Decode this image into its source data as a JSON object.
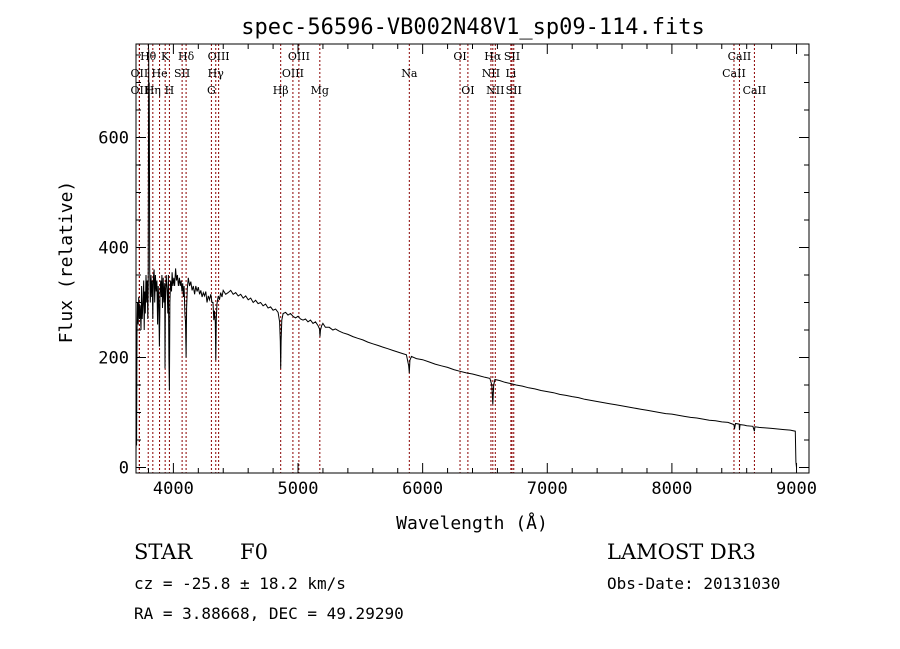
{
  "chart_data": {
    "type": "line",
    "title": "spec-56596-VB002N48V1_sp09-114.fits",
    "xlabel": "Wavelength (Å)",
    "ylabel": "Flux (relative)",
    "xlim": [
      3700,
      9100
    ],
    "ylim": [
      -10,
      770
    ],
    "xticks": [
      4000,
      5000,
      6000,
      7000,
      8000,
      9000
    ],
    "yticks": [
      0,
      200,
      400,
      600
    ],
    "series": [
      {
        "name": "flux",
        "points": [
          [
            3700,
            0
          ],
          [
            3702,
            130
          ],
          [
            3705,
            40
          ],
          [
            3708,
            250
          ],
          [
            3712,
            300
          ],
          [
            3718,
            260
          ],
          [
            3722,
            310
          ],
          [
            3728,
            270
          ],
          [
            3733,
            295
          ],
          [
            3740,
            250
          ],
          [
            3745,
            330
          ],
          [
            3750,
            270
          ],
          [
            3756,
            300
          ],
          [
            3762,
            340
          ],
          [
            3766,
            250
          ],
          [
            3770,
            320
          ],
          [
            3775,
            280
          ],
          [
            3780,
            350
          ],
          [
            3786,
            300
          ],
          [
            3790,
            340
          ],
          [
            3795,
            270
          ],
          [
            3798,
            330
          ],
          [
            3800,
            600
          ],
          [
            3802,
            760
          ],
          [
            3804,
            540
          ],
          [
            3806,
            700
          ],
          [
            3808,
            520
          ],
          [
            3810,
            360
          ],
          [
            3815,
            300
          ],
          [
            3820,
            350
          ],
          [
            3826,
            310
          ],
          [
            3830,
            340
          ],
          [
            3835,
            270
          ],
          [
            3840,
            345
          ],
          [
            3845,
            360
          ],
          [
            3850,
            300
          ],
          [
            3856,
            350
          ],
          [
            3862,
            320
          ],
          [
            3868,
            340
          ],
          [
            3873,
            260
          ],
          [
            3878,
            330
          ],
          [
            3883,
            305
          ],
          [
            3888,
            220
          ],
          [
            3893,
            320
          ],
          [
            3898,
            340
          ],
          [
            3903,
            310
          ],
          [
            3908,
            350
          ],
          [
            3913,
            290
          ],
          [
            3918,
            345
          ],
          [
            3924,
            300
          ],
          [
            3930,
            335
          ],
          [
            3933,
            180
          ],
          [
            3936,
            300
          ],
          [
            3942,
            350
          ],
          [
            3950,
            320
          ],
          [
            3955,
            280
          ],
          [
            3960,
            350
          ],
          [
            3964,
            200
          ],
          [
            3968,
            140
          ],
          [
            3972,
            300
          ],
          [
            3978,
            340
          ],
          [
            3985,
            320
          ],
          [
            3990,
            355
          ],
          [
            3996,
            330
          ],
          [
            4003,
            345
          ],
          [
            4010,
            330
          ],
          [
            4018,
            362
          ],
          [
            4025,
            340
          ],
          [
            4032,
            350
          ],
          [
            4040,
            330
          ],
          [
            4048,
            345
          ],
          [
            4055,
            330
          ],
          [
            4062,
            340
          ],
          [
            4068,
            320
          ],
          [
            4075,
            335
          ],
          [
            4080,
            310
          ],
          [
            4086,
            330
          ],
          [
            4092,
            280
          ],
          [
            4097,
            265
          ],
          [
            4102,
            200
          ],
          [
            4106,
            290
          ],
          [
            4112,
            325
          ],
          [
            4120,
            345
          ],
          [
            4130,
            330
          ],
          [
            4140,
            338
          ],
          [
            4150,
            322
          ],
          [
            4160,
            330
          ],
          [
            4170,
            315
          ],
          [
            4180,
            330
          ],
          [
            4190,
            320
          ],
          [
            4200,
            328
          ],
          [
            4210,
            315
          ],
          [
            4220,
            322
          ],
          [
            4230,
            310
          ],
          [
            4240,
            318
          ],
          [
            4250,
            312
          ],
          [
            4260,
            320
          ],
          [
            4270,
            300
          ],
          [
            4280,
            312
          ],
          [
            4290,
            305
          ],
          [
            4300,
            315
          ],
          [
            4310,
            300
          ],
          [
            4318,
            300
          ],
          [
            4324,
            268
          ],
          [
            4330,
            285
          ],
          [
            4336,
            265
          ],
          [
            4340,
            195
          ],
          [
            4344,
            270
          ],
          [
            4350,
            298
          ],
          [
            4360,
            312
          ],
          [
            4370,
            305
          ],
          [
            4380,
            318
          ],
          [
            4390,
            310
          ],
          [
            4400,
            322
          ],
          [
            4420,
            315
          ],
          [
            4440,
            318
          ],
          [
            4460,
            322
          ],
          [
            4480,
            315
          ],
          [
            4500,
            318
          ],
          [
            4520,
            312
          ],
          [
            4540,
            315
          ],
          [
            4560,
            308
          ],
          [
            4580,
            312
          ],
          [
            4600,
            305
          ],
          [
            4620,
            308
          ],
          [
            4640,
            300
          ],
          [
            4660,
            304
          ],
          [
            4680,
            298
          ],
          [
            4700,
            300
          ],
          [
            4720,
            294
          ],
          [
            4740,
            297
          ],
          [
            4760,
            290
          ],
          [
            4780,
            292
          ],
          [
            4800,
            286
          ],
          [
            4820,
            288
          ],
          [
            4840,
            282
          ],
          [
            4852,
            265
          ],
          [
            4858,
            230
          ],
          [
            4861,
            180
          ],
          [
            4864,
            230
          ],
          [
            4870,
            268
          ],
          [
            4880,
            280
          ],
          [
            4900,
            282
          ],
          [
            4920,
            277
          ],
          [
            4940,
            280
          ],
          [
            4960,
            275
          ],
          [
            4980,
            272
          ],
          [
            5000,
            275
          ],
          [
            5020,
            270
          ],
          [
            5040,
            268
          ],
          [
            5060,
            270
          ],
          [
            5080,
            265
          ],
          [
            5100,
            268
          ],
          [
            5120,
            262
          ],
          [
            5140,
            265
          ],
          [
            5160,
            258
          ],
          [
            5172,
            252
          ],
          [
            5176,
            238
          ],
          [
            5180,
            250
          ],
          [
            5190,
            258
          ],
          [
            5200,
            262
          ],
          [
            5220,
            255
          ],
          [
            5250,
            255
          ],
          [
            5280,
            250
          ],
          [
            5300,
            252
          ],
          [
            5330,
            248
          ],
          [
            5360,
            245
          ],
          [
            5400,
            242
          ],
          [
            5440,
            238
          ],
          [
            5480,
            235
          ],
          [
            5520,
            232
          ],
          [
            5560,
            228
          ],
          [
            5600,
            225
          ],
          [
            5640,
            222
          ],
          [
            5680,
            219
          ],
          [
            5720,
            216
          ],
          [
            5760,
            213
          ],
          [
            5800,
            210
          ],
          [
            5840,
            207
          ],
          [
            5870,
            205
          ],
          [
            5888,
            185
          ],
          [
            5893,
            172
          ],
          [
            5898,
            195
          ],
          [
            5910,
            202
          ],
          [
            5950,
            198
          ],
          [
            6000,
            196
          ],
          [
            6050,
            192
          ],
          [
            6100,
            188
          ],
          [
            6150,
            185
          ],
          [
            6200,
            182
          ],
          [
            6250,
            178
          ],
          [
            6300,
            175
          ],
          [
            6350,
            172
          ],
          [
            6400,
            170
          ],
          [
            6450,
            167
          ],
          [
            6500,
            164
          ],
          [
            6540,
            162
          ],
          [
            6555,
            150
          ],
          [
            6563,
            115
          ],
          [
            6570,
            150
          ],
          [
            6580,
            160
          ],
          [
            6620,
            158
          ],
          [
            6660,
            155
          ],
          [
            6700,
            153
          ],
          [
            6750,
            150
          ],
          [
            6800,
            148
          ],
          [
            6850,
            145
          ],
          [
            6900,
            143
          ],
          [
            6950,
            140
          ],
          [
            7000,
            138
          ],
          [
            7050,
            136
          ],
          [
            7100,
            133
          ],
          [
            7150,
            131
          ],
          [
            7200,
            129
          ],
          [
            7250,
            127
          ],
          [
            7300,
            124
          ],
          [
            7350,
            122
          ],
          [
            7400,
            120
          ],
          [
            7450,
            118
          ],
          [
            7500,
            116
          ],
          [
            7550,
            114
          ],
          [
            7600,
            112
          ],
          [
            7650,
            110
          ],
          [
            7700,
            108
          ],
          [
            7750,
            106
          ],
          [
            7800,
            104
          ],
          [
            7850,
            102
          ],
          [
            7900,
            100
          ],
          [
            7950,
            98
          ],
          [
            8000,
            97
          ],
          [
            8050,
            95
          ],
          [
            8100,
            93
          ],
          [
            8150,
            91
          ],
          [
            8200,
            90
          ],
          [
            8250,
            88
          ],
          [
            8300,
            86
          ],
          [
            8350,
            85
          ],
          [
            8400,
            83
          ],
          [
            8450,
            82
          ],
          [
            8498,
            78
          ],
          [
            8502,
            70
          ],
          [
            8510,
            80
          ],
          [
            8540,
            79
          ],
          [
            8542,
            68
          ],
          [
            8546,
            78
          ],
          [
            8580,
            77
          ],
          [
            8600,
            76
          ],
          [
            8650,
            75
          ],
          [
            8662,
            66
          ],
          [
            8666,
            74
          ],
          [
            8700,
            73
          ],
          [
            8750,
            72
          ],
          [
            8800,
            71
          ],
          [
            8850,
            70
          ],
          [
            8900,
            69
          ],
          [
            8950,
            68
          ],
          [
            8990,
            66
          ],
          [
            8995,
            10
          ],
          [
            9000,
            0
          ]
        ]
      }
    ],
    "line_labels": [
      {
        "text": "Hθ",
        "x": 3798,
        "row": 0
      },
      {
        "text": "K",
        "x": 3934,
        "row": 0
      },
      {
        "text": "Hδ",
        "x": 4102,
        "row": 0
      },
      {
        "text": "OIII",
        "x": 4363,
        "row": 0
      },
      {
        "text": "OIII",
        "x": 5007,
        "row": 0
      },
      {
        "text": "OI",
        "x": 6300,
        "row": 0
      },
      {
        "text": "Hα",
        "x": 6563,
        "row": 0
      },
      {
        "text": "SII",
        "x": 6717,
        "row": 0
      },
      {
        "text": "CaII",
        "x": 8542,
        "row": 0
      },
      {
        "text": "OII",
        "x": 3727,
        "row": 1
      },
      {
        "text": "He",
        "x": 3889,
        "row": 1
      },
      {
        "text": "SII",
        "x": 4070,
        "row": 1
      },
      {
        "text": "Hγ",
        "x": 4340,
        "row": 1
      },
      {
        "text": "OIII",
        "x": 4959,
        "row": 1
      },
      {
        "text": "Na",
        "x": 5893,
        "row": 1
      },
      {
        "text": "NII",
        "x": 6548,
        "row": 1
      },
      {
        "text": "Li",
        "x": 6708,
        "row": 1
      },
      {
        "text": "CaII",
        "x": 8498,
        "row": 1
      },
      {
        "text": "OII",
        "x": 3727,
        "row": 2
      },
      {
        "text": "Hη",
        "x": 3835,
        "row": 2
      },
      {
        "text": "H",
        "x": 3968,
        "row": 2
      },
      {
        "text": "G",
        "x": 4305,
        "row": 2
      },
      {
        "text": "Hβ",
        "x": 4861,
        "row": 2
      },
      {
        "text": "Mg",
        "x": 5175,
        "row": 2
      },
      {
        "text": "OI",
        "x": 6363,
        "row": 2
      },
      {
        "text": "NII",
        "x": 6583,
        "row": 2
      },
      {
        "text": "SII",
        "x": 6731,
        "row": 2
      },
      {
        "text": "CaII",
        "x": 8662,
        "row": 2
      }
    ],
    "line_color": "#8b0000",
    "spectrum_color": "#000000"
  },
  "info": {
    "object_type": "STAR",
    "subclass": "F0",
    "survey": "LAMOST DR3",
    "redshift": "cz = -25.8 ± 18.2 km/s",
    "obs_date": "Obs-Date: 20131030",
    "coords": "RA =   3.88668, DEC =  49.29290"
  }
}
